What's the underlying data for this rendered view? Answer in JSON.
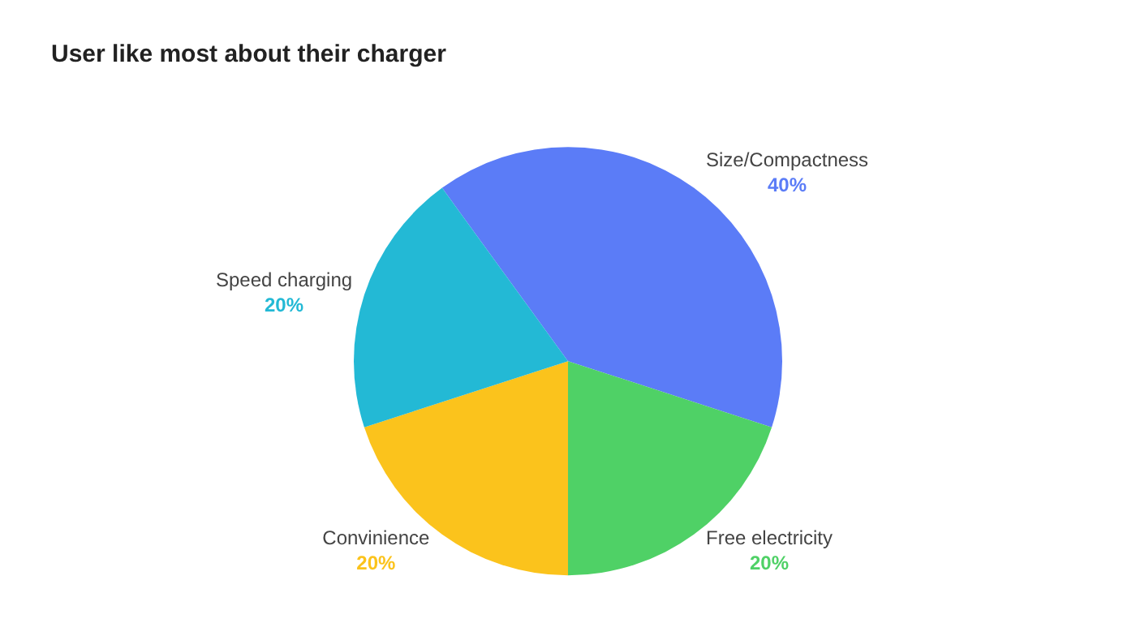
{
  "chart_data": {
    "type": "pie",
    "title": "User like most about their charger",
    "categories": [
      "Size/Compactness",
      "Free electricity",
      "Convinience",
      "Speed charging"
    ],
    "values": [
      40,
      20,
      20,
      20
    ],
    "value_labels": [
      "40%",
      "20%",
      "20%",
      "20%"
    ],
    "colors": [
      "#5b7cf7",
      "#4fd166",
      "#fbc31c",
      "#23b9d5"
    ],
    "legend": false
  }
}
